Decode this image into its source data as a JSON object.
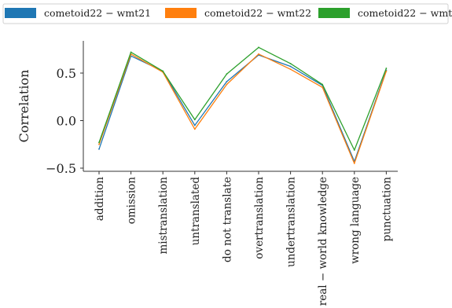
{
  "chart_data": {
    "type": "line",
    "title": "",
    "xlabel": "",
    "ylabel": "Correlation",
    "ylim": [
      -0.5,
      0.8
    ],
    "yticks": [
      {
        "value": 0.5,
        "label": "0.5"
      },
      {
        "value": 0.0,
        "label": "0.0"
      },
      {
        "value": -0.5,
        "label": "−0.5"
      }
    ],
    "categories": [
      "addition",
      "omission",
      "mistranslation",
      "untranslated",
      "do not translate",
      "overtranslation",
      "undertranslation",
      "real − world knowledge",
      "wrong language",
      "punctuation"
    ],
    "grid": false,
    "legend_position": "top",
    "series": [
      {
        "name": "cometoid22 − wmt21",
        "color": "#1f77b4",
        "values": [
          -0.3,
          0.68,
          0.52,
          -0.05,
          0.41,
          0.69,
          0.57,
          0.37,
          -0.43,
          0.53
        ]
      },
      {
        "name": "cometoid22 − wmt22",
        "color": "#ff7f0e",
        "values": [
          -0.25,
          0.7,
          0.51,
          -0.09,
          0.38,
          0.7,
          0.54,
          0.35,
          -0.45,
          0.52
        ]
      },
      {
        "name": "cometoid22 − wmt23",
        "color": "#2ca02c",
        "values": [
          -0.23,
          0.72,
          0.52,
          0.01,
          0.49,
          0.77,
          0.6,
          0.38,
          -0.31,
          0.55
        ]
      }
    ]
  }
}
